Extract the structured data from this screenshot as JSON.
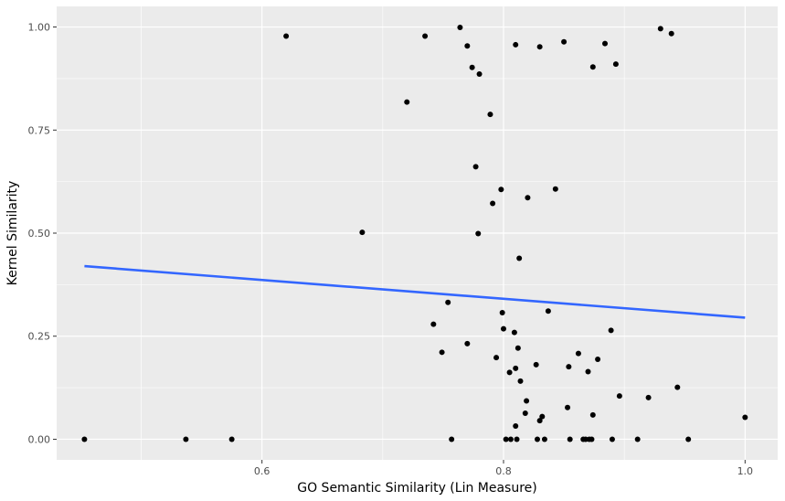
{
  "chart_data": {
    "type": "scatter",
    "xlabel": "GO Semantic Similarity (Lin Measure)",
    "ylabel": "Kernel Similarity",
    "xlim": [
      0.43,
      1.027
    ],
    "ylim": [
      -0.05,
      1.05
    ],
    "x_ticks": [
      0.6,
      0.8,
      1.0
    ],
    "x_tick_labels": [
      "0.6",
      "0.8",
      "1.0"
    ],
    "y_ticks": [
      0.0,
      0.25,
      0.5,
      0.75,
      1.0
    ],
    "y_tick_labels": [
      "0.00",
      "0.25",
      "0.50",
      "0.75",
      "1.00"
    ],
    "grid": true,
    "panel_background": "#ebebeb",
    "grid_color": "#ffffff",
    "point_color": "#000000",
    "trend_color": "#3366ff",
    "points": [
      {
        "x": 0.453,
        "y": 0.0
      },
      {
        "x": 0.537,
        "y": 0.0
      },
      {
        "x": 0.575,
        "y": 0.0
      },
      {
        "x": 0.62,
        "y": 0.978
      },
      {
        "x": 0.683,
        "y": 0.502
      },
      {
        "x": 0.72,
        "y": 0.818
      },
      {
        "x": 0.735,
        "y": 0.978
      },
      {
        "x": 0.742,
        "y": 0.279
      },
      {
        "x": 0.749,
        "y": 0.211
      },
      {
        "x": 0.754,
        "y": 0.332
      },
      {
        "x": 0.757,
        "y": 0.0
      },
      {
        "x": 0.764,
        "y": 0.999
      },
      {
        "x": 0.77,
        "y": 0.954
      },
      {
        "x": 0.77,
        "y": 0.232
      },
      {
        "x": 0.774,
        "y": 0.902
      },
      {
        "x": 0.777,
        "y": 0.661
      },
      {
        "x": 0.779,
        "y": 0.499
      },
      {
        "x": 0.78,
        "y": 0.886
      },
      {
        "x": 0.789,
        "y": 0.788
      },
      {
        "x": 0.791,
        "y": 0.572
      },
      {
        "x": 0.794,
        "y": 0.198
      },
      {
        "x": 0.798,
        "y": 0.606
      },
      {
        "x": 0.799,
        "y": 0.307
      },
      {
        "x": 0.8,
        "y": 0.268
      },
      {
        "x": 0.802,
        "y": 0.0
      },
      {
        "x": 0.805,
        "y": 0.162
      },
      {
        "x": 0.806,
        "y": 0.0
      },
      {
        "x": 0.809,
        "y": 0.259
      },
      {
        "x": 0.81,
        "y": 0.957
      },
      {
        "x": 0.81,
        "y": 0.172
      },
      {
        "x": 0.81,
        "y": 0.032
      },
      {
        "x": 0.811,
        "y": 0.0
      },
      {
        "x": 0.812,
        "y": 0.221
      },
      {
        "x": 0.813,
        "y": 0.439
      },
      {
        "x": 0.814,
        "y": 0.141
      },
      {
        "x": 0.818,
        "y": 0.063
      },
      {
        "x": 0.819,
        "y": 0.093
      },
      {
        "x": 0.82,
        "y": 0.586
      },
      {
        "x": 0.827,
        "y": 0.181
      },
      {
        "x": 0.828,
        "y": 0.0
      },
      {
        "x": 0.83,
        "y": 0.952
      },
      {
        "x": 0.83,
        "y": 0.045
      },
      {
        "x": 0.832,
        "y": 0.055
      },
      {
        "x": 0.834,
        "y": 0.0
      },
      {
        "x": 0.837,
        "y": 0.311
      },
      {
        "x": 0.843,
        "y": 0.607
      },
      {
        "x": 0.85,
        "y": 0.964
      },
      {
        "x": 0.853,
        "y": 0.077
      },
      {
        "x": 0.854,
        "y": 0.176
      },
      {
        "x": 0.855,
        "y": 0.0
      },
      {
        "x": 0.862,
        "y": 0.208
      },
      {
        "x": 0.866,
        "y": 0.0
      },
      {
        "x": 0.868,
        "y": 0.0
      },
      {
        "x": 0.87,
        "y": 0.164
      },
      {
        "x": 0.871,
        "y": 0.0
      },
      {
        "x": 0.873,
        "y": 0.0
      },
      {
        "x": 0.874,
        "y": 0.903
      },
      {
        "x": 0.874,
        "y": 0.059
      },
      {
        "x": 0.878,
        "y": 0.194
      },
      {
        "x": 0.884,
        "y": 0.96
      },
      {
        "x": 0.889,
        "y": 0.264
      },
      {
        "x": 0.89,
        "y": 0.0
      },
      {
        "x": 0.893,
        "y": 0.91
      },
      {
        "x": 0.896,
        "y": 0.105
      },
      {
        "x": 0.911,
        "y": 0.0
      },
      {
        "x": 0.92,
        "y": 0.101
      },
      {
        "x": 0.93,
        "y": 0.996
      },
      {
        "x": 0.939,
        "y": 0.984
      },
      {
        "x": 0.944,
        "y": 0.126
      },
      {
        "x": 0.953,
        "y": 0.0
      },
      {
        "x": 1.0,
        "y": 0.053
      }
    ],
    "trend_line": {
      "x": [
        0.453,
        1.0
      ],
      "y": [
        0.42,
        0.295
      ]
    }
  }
}
